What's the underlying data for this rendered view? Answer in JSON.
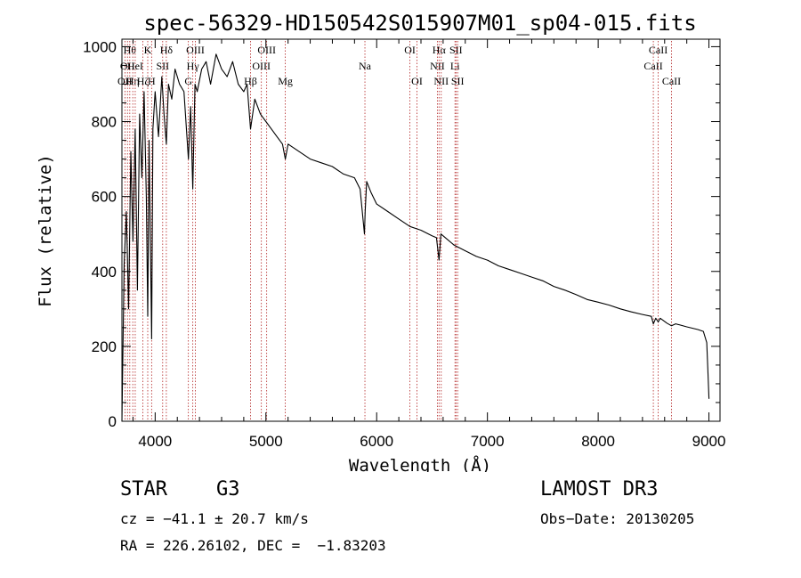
{
  "chart_data": {
    "type": "line",
    "title": "spec-56329-HD150542S015907M01_sp04-015.fits",
    "xlabel": "Wavelength (Å)",
    "ylabel": "Flux (relative)",
    "xlim": [
      3700,
      9100
    ],
    "ylim": [
      0,
      1020
    ],
    "xticks": [
      4000,
      5000,
      6000,
      7000,
      8000,
      9000
    ],
    "yticks": [
      0,
      200,
      400,
      600,
      800,
      1000
    ],
    "grid": false,
    "series": [
      {
        "name": "flux",
        "x": [
          3700,
          3720,
          3740,
          3760,
          3780,
          3800,
          3820,
          3840,
          3860,
          3880,
          3900,
          3920,
          3933,
          3945,
          3968,
          3980,
          4000,
          4030,
          4060,
          4080,
          4101,
          4120,
          4150,
          4180,
          4220,
          4260,
          4300,
          4320,
          4340,
          4360,
          4380,
          4420,
          4460,
          4500,
          4550,
          4600,
          4650,
          4700,
          4750,
          4800,
          4830,
          4861,
          4900,
          4950,
          5000,
          5050,
          5100,
          5150,
          5175,
          5200,
          5300,
          5400,
          5500,
          5600,
          5700,
          5800,
          5850,
          5890,
          5896,
          5910,
          5950,
          6000,
          6100,
          6200,
          6300,
          6400,
          6500,
          6540,
          6563,
          6580,
          6620,
          6700,
          6800,
          6900,
          7000,
          7100,
          7200,
          7300,
          7400,
          7500,
          7600,
          7700,
          7800,
          7900,
          8000,
          8100,
          8200,
          8300,
          8400,
          8480,
          8498,
          8520,
          8542,
          8560,
          8620,
          8662,
          8700,
          8800,
          8900,
          8950,
          8980,
          8990,
          9000
        ],
        "y": [
          0,
          420,
          560,
          300,
          720,
          480,
          780,
          350,
          820,
          650,
          880,
          600,
          280,
          750,
          220,
          780,
          880,
          760,
          920,
          820,
          740,
          900,
          860,
          940,
          900,
          880,
          700,
          840,
          620,
          900,
          880,
          940,
          960,
          900,
          980,
          940,
          920,
          960,
          900,
          880,
          900,
          780,
          860,
          820,
          800,
          780,
          760,
          740,
          700,
          740,
          720,
          700,
          690,
          680,
          660,
          650,
          620,
          500,
          560,
          640,
          610,
          580,
          560,
          540,
          520,
          510,
          495,
          490,
          430,
          500,
          490,
          470,
          455,
          440,
          430,
          415,
          405,
          395,
          385,
          375,
          360,
          350,
          338,
          325,
          318,
          310,
          300,
          292,
          285,
          280,
          260,
          275,
          265,
          275,
          262,
          255,
          260,
          252,
          245,
          240,
          210,
          140,
          60
        ]
      }
    ],
    "line_markers": [
      {
        "wavelength": 3727,
        "label": "OII",
        "row": 2
      },
      {
        "wavelength": 3750,
        "label": "OII",
        "row": 1
      },
      {
        "wavelength": 3771,
        "label": "Hθ",
        "row": 0
      },
      {
        "wavelength": 3798,
        "label": "Hη",
        "row": 2
      },
      {
        "wavelength": 3820,
        "label": "HeI",
        "row": 1
      },
      {
        "wavelength": 3889,
        "label": "Hζ",
        "row": 2
      },
      {
        "wavelength": 3933,
        "label": "K",
        "row": 0
      },
      {
        "wavelength": 3968,
        "label": "H",
        "row": 2
      },
      {
        "wavelength": 4068,
        "label": "SII",
        "row": 1
      },
      {
        "wavelength": 4101,
        "label": "Hδ",
        "row": 0
      },
      {
        "wavelength": 4300,
        "label": "G",
        "row": 2
      },
      {
        "wavelength": 4340,
        "label": "Hγ",
        "row": 1
      },
      {
        "wavelength": 4363,
        "label": "OIII",
        "row": 0
      },
      {
        "wavelength": 4861,
        "label": "Hβ",
        "row": 2
      },
      {
        "wavelength": 4959,
        "label": "OIII",
        "row": 1
      },
      {
        "wavelength": 5007,
        "label": "OIII",
        "row": 0
      },
      {
        "wavelength": 5175,
        "label": "Mg",
        "row": 2
      },
      {
        "wavelength": 5894,
        "label": "Na",
        "row": 1
      },
      {
        "wavelength": 6300,
        "label": "OI",
        "row": 0
      },
      {
        "wavelength": 6364,
        "label": "OI",
        "row": 2
      },
      {
        "wavelength": 6548,
        "label": "NII",
        "row": 1
      },
      {
        "wavelength": 6563,
        "label": "Hα",
        "row": 0
      },
      {
        "wavelength": 6583,
        "label": "NII",
        "row": 2
      },
      {
        "wavelength": 6707,
        "label": "Li",
        "row": 1
      },
      {
        "wavelength": 6716,
        "label": "SII",
        "row": 0
      },
      {
        "wavelength": 6731,
        "label": "SII",
        "row": 2
      },
      {
        "wavelength": 8498,
        "label": "CaII",
        "row": 1
      },
      {
        "wavelength": 8542,
        "label": "CaII",
        "row": 0
      },
      {
        "wavelength": 8662,
        "label": "CaII",
        "row": 2
      }
    ]
  },
  "info": {
    "object_class": "STAR",
    "subclass": "G3",
    "survey": "LAMOST DR3",
    "cz": "cz = −41.1 ± 20.7 km/s",
    "obs_date": "Obs−Date: 20130205",
    "coords": "RA = 226.26102, DEC =  −1.83203"
  },
  "colors": {
    "spectrum": "#000000",
    "marker_line": "#b22222",
    "text": "#000000"
  }
}
